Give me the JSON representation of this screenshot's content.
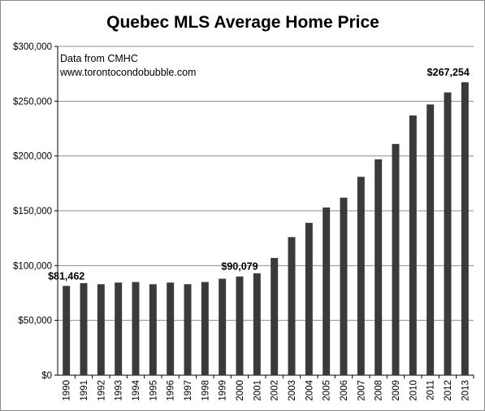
{
  "chart_data": {
    "type": "bar",
    "title": "Quebec MLS Average Home Price",
    "annotations": [
      "Data from CMHC",
      "www.torontocondobubble.com"
    ],
    "xlabel": "",
    "ylabel": "",
    "categories": [
      "1990",
      "1991",
      "1992",
      "1993",
      "1994",
      "1995",
      "1996",
      "1997",
      "1998",
      "1999",
      "2000",
      "2001",
      "2002",
      "2003",
      "2004",
      "2005",
      "2006",
      "2007",
      "2008",
      "2009",
      "2010",
      "2011",
      "2012",
      "2013"
    ],
    "values": [
      81462,
      84000,
      83000,
      84500,
      85000,
      83000,
      84500,
      83000,
      85000,
      88000,
      90079,
      93000,
      107000,
      126000,
      139000,
      153000,
      162000,
      181000,
      197000,
      211000,
      237000,
      247000,
      258000,
      267254
    ],
    "y_ticks": [
      0,
      50000,
      100000,
      150000,
      200000,
      250000,
      300000
    ],
    "y_tick_labels": [
      "$0",
      "$50,000",
      "$100,000",
      "$150,000",
      "$200,000",
      "$250,000",
      "$300,000"
    ],
    "ylim": [
      0,
      300000
    ],
    "data_labels": [
      {
        "category": "1990",
        "text": "$81,462"
      },
      {
        "category": "2000",
        "text": "$90,079"
      },
      {
        "category": "2013",
        "text": "$267,254"
      }
    ],
    "grid": true,
    "bar_color": "#3a3a3a"
  }
}
